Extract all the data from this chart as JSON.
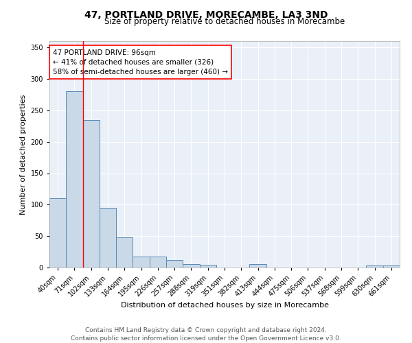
{
  "title": "47, PORTLAND DRIVE, MORECAMBE, LA3 3ND",
  "subtitle": "Size of property relative to detached houses in Morecambe",
  "xlabel": "Distribution of detached houses by size in Morecambe",
  "ylabel": "Number of detached properties",
  "categories": [
    "40sqm",
    "71sqm",
    "102sqm",
    "133sqm",
    "164sqm",
    "195sqm",
    "226sqm",
    "257sqm",
    "288sqm",
    "319sqm",
    "351sqm",
    "382sqm",
    "413sqm",
    "444sqm",
    "475sqm",
    "506sqm",
    "537sqm",
    "568sqm",
    "599sqm",
    "630sqm",
    "661sqm"
  ],
  "values": [
    110,
    280,
    235,
    95,
    48,
    18,
    18,
    12,
    5,
    4,
    0,
    0,
    5,
    0,
    0,
    0,
    0,
    0,
    0,
    3,
    3
  ],
  "bar_color": "#c9d9e8",
  "bar_edge_color": "#5a8ab5",
  "red_line_x": 1.5,
  "annotation_text": "47 PORTLAND DRIVE: 96sqm\n← 41% of detached houses are smaller (326)\n58% of semi-detached houses are larger (460) →",
  "annotation_box_color": "white",
  "annotation_box_edge": "red",
  "ylim": [
    0,
    360
  ],
  "yticks": [
    0,
    50,
    100,
    150,
    200,
    250,
    300,
    350
  ],
  "footer_line1": "Contains HM Land Registry data © Crown copyright and database right 2024.",
  "footer_line2": "Contains public sector information licensed under the Open Government Licence v3.0.",
  "background_color": "#eaf0f7",
  "grid_color": "white",
  "title_fontsize": 10,
  "subtitle_fontsize": 8.5,
  "axis_label_fontsize": 8,
  "tick_fontsize": 7,
  "annotation_fontsize": 7.5,
  "footer_fontsize": 6.5
}
